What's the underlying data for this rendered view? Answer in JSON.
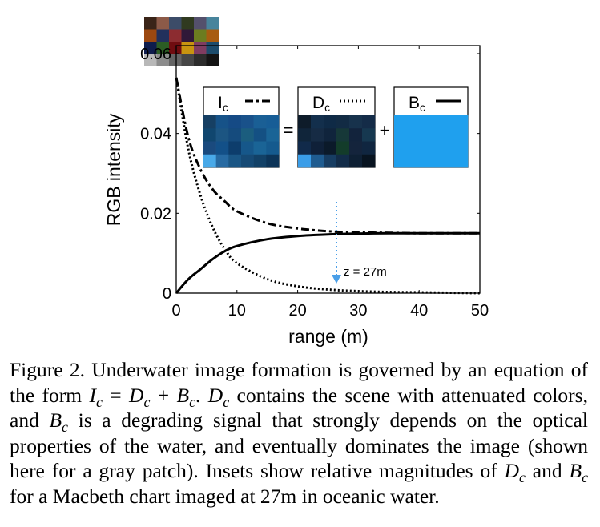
{
  "figure": {
    "chart_data": {
      "type": "line",
      "xlabel": "range (m)",
      "ylabel": "RGB intensity",
      "xlim": [
        0,
        50
      ],
      "ylim": [
        0,
        0.062
      ],
      "xticks": [
        0,
        10,
        20,
        30,
        40,
        50
      ],
      "yticks": [
        0,
        0.02,
        0.04,
        0.06
      ],
      "xtick_labels": [
        "0",
        "10",
        "20",
        "30",
        "40",
        "50"
      ],
      "ytick_labels": [
        "0",
        "0.02",
        "0.04",
        "0.06"
      ],
      "grid": false,
      "x": [
        0,
        2,
        4,
        6,
        8,
        10,
        15,
        20,
        25,
        30,
        35,
        40,
        45,
        50
      ],
      "series": [
        {
          "name": "Ic",
          "style": "dashdot",
          "values": [
            0.054,
            0.039,
            0.031,
            0.026,
            0.023,
            0.0205,
            0.0175,
            0.0162,
            0.0155,
            0.0152,
            0.0151,
            0.015,
            0.015,
            0.015
          ]
        },
        {
          "name": "Dc",
          "style": "dotted",
          "values": [
            0.054,
            0.036,
            0.0245,
            0.0165,
            0.011,
            0.0075,
            0.0035,
            0.0017,
            0.0009,
            0.0005,
            0.0003,
            0.0002,
            0.0001,
            0.0
          ]
        },
        {
          "name": "Bc",
          "style": "solid",
          "values": [
            0.0,
            0.0035,
            0.006,
            0.0085,
            0.0105,
            0.0118,
            0.0135,
            0.0143,
            0.0147,
            0.0149,
            0.015,
            0.015,
            0.015,
            0.015
          ]
        }
      ],
      "annotation": {
        "text": "z = 27m",
        "x": 26.5,
        "color": "#4a9fe8"
      }
    },
    "insets": [
      {
        "label": "I",
        "sub": "c",
        "op": "=",
        "colors": [
          "#163f63",
          "#165288",
          "#154a85",
          "#19518a",
          "#1a5f95",
          "#175d96",
          "#10466f",
          "#1c5582",
          "#154b7d",
          "#1b5d7e",
          "#145083",
          "#1a6496",
          "#1a4a7e",
          "#135088",
          "#0d3d6c",
          "#16578a",
          "#1a6496",
          "#155a8e",
          "#49a9e8",
          "#276aa2",
          "#1a5685",
          "#164a75",
          "#124167",
          "#0c3458"
        ]
      },
      {
        "label": "D",
        "sub": "c",
        "op": "+",
        "colors": [
          "#0e1c2a",
          "#132f4c",
          "#0f2a46",
          "#122b44",
          "#17324c",
          "#142c48",
          "#10253a",
          "#162b44",
          "#10243c",
          "#163838",
          "#12233c",
          "#163850",
          "#112a4a",
          "#0f2038",
          "#0b1a2a",
          "#133c2a",
          "#14243c",
          "#102640",
          "#3a9de8",
          "#1f5c90",
          "#173d62",
          "#122c48",
          "#0e2034",
          "#081420"
        ]
      },
      {
        "label": "B",
        "sub": "c",
        "op": "",
        "colors": [
          "#1fa0ee"
        ]
      }
    ],
    "macbeth_colors": [
      "#3a2418",
      "#8c5a48",
      "#3c4c68",
      "#303a20",
      "#54506c",
      "#48849c",
      "#9c4810",
      "#22305c",
      "#8c2c30",
      "#301838",
      "#6c7c20",
      "#a85c10",
      "#0e1c4c",
      "#2c5c24",
      "#700c10",
      "#c89410",
      "#803c60",
      "#1c4c6c",
      "#b8b8b8",
      "#8c8c8c",
      "#646464",
      "#464646",
      "#2c2c2c",
      "#141414"
    ]
  },
  "caption": {
    "p1": "Figure 2. Underwater image formation is governed by an equation of the form ",
    "eq_I": "I",
    "eq_Isub": "c",
    "eq_eq": " = ",
    "eq_D": "D",
    "eq_Dsub": "c",
    "eq_plus": " + ",
    "eq_B": "B",
    "eq_Bsub": "c",
    "eq_end": ". ",
    "s_D": "D",
    "s_Dsub": "c",
    "p2": " contains the scene with attenuated colors, and ",
    "s_B": "B",
    "s_Bsub": "c",
    "p3": " is a degrading signal that strongly depends on the optical properties of the water, and eventually dominates the image (shown here for a gray patch). Insets show relative magnitudes of ",
    "s2_D": "D",
    "s2_Dsub": "c",
    "p4": " and ",
    "s2_B": "B",
    "s2_Bsub": "c",
    "p5": " for a Macbeth chart imaged at 27m in oceanic water."
  }
}
